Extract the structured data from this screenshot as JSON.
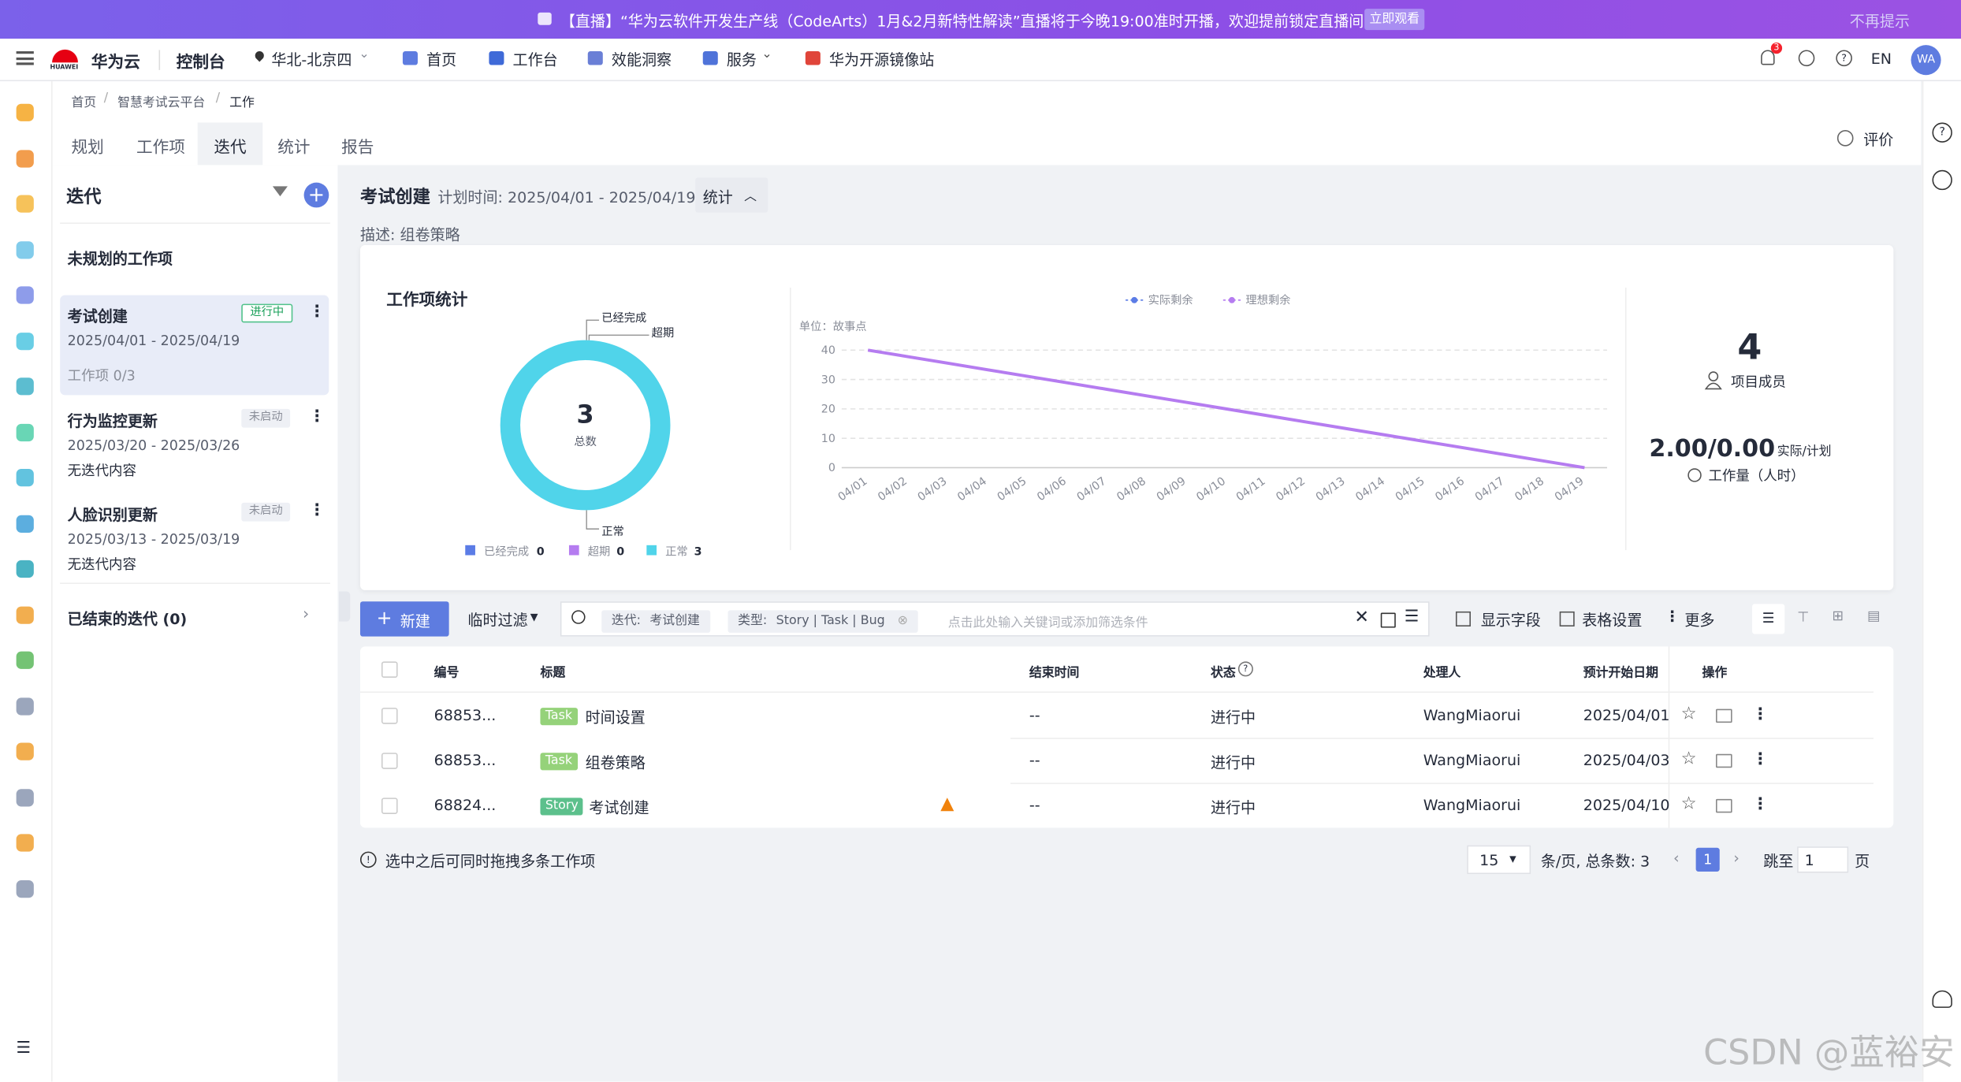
{
  "banner": {
    "text": "【直播】“华为云软件开发生产线（CodeArts）1月&2月新特性解读”直播将于今晚19:00准时开播，欢迎提前锁定直播间!",
    "button": "立即观看",
    "dismiss": "不再提示"
  },
  "nav": {
    "brand": "华为云",
    "logo_text": "HUAWEI",
    "console": "控制台",
    "region": "华北-北京四",
    "items": [
      "首页",
      "工作台",
      "效能洞察",
      "服务",
      "华为开源镜像站"
    ],
    "badge": "3",
    "lang": "EN",
    "avatar": "WA"
  },
  "breadcrumb": [
    "首页",
    "智慧考试云平台",
    "工作"
  ],
  "tabs": [
    "规划",
    "工作项",
    "迭代",
    "统计",
    "报告"
  ],
  "feedback": "评价",
  "sidebar": {
    "title": "迭代",
    "unplanned": "未规划的工作项",
    "iterations": [
      {
        "name": "考试创建",
        "status": "进行中",
        "dates": "2025/04/01 - 2025/04/19",
        "info": "工作项 0/3"
      },
      {
        "name": "行为监控更新",
        "status": "未启动",
        "dates": "2025/03/20 - 2025/03/26",
        "info": "无迭代内容"
      },
      {
        "name": "人脸识别更新",
        "status": "未启动",
        "dates": "2025/03/13 - 2025/03/19",
        "info": "无迭代内容"
      }
    ],
    "closed": "已结束的迭代 (0)"
  },
  "header": {
    "title": "考试创建",
    "plan": "计划时间: 2025/04/01 - 2025/04/19",
    "stats_button": "统计",
    "desc": "描述: 组卷策略"
  },
  "stats": {
    "title": "工作项统计",
    "members": "4",
    "members_label": "项目成员",
    "workload": "2.00/0.00",
    "workload_ratio": "实际/计划",
    "workload_label": "工作量（人时）"
  },
  "chart_data": [
    {
      "type": "pie",
      "total": 3,
      "total_label": "总数",
      "categories": [
        "已经完成",
        "超期",
        "正常"
      ],
      "values": [
        0,
        0,
        3
      ],
      "colors": [
        "#5b7ce6",
        "#b57cf0",
        "#50d4ea"
      ]
    },
    {
      "type": "line",
      "unit": "单位：故事点",
      "categories": [
        "04/01",
        "04/02",
        "04/03",
        "04/04",
        "04/05",
        "04/06",
        "04/07",
        "04/08",
        "04/09",
        "04/10",
        "04/11",
        "04/12",
        "04/13",
        "04/14",
        "04/15",
        "04/16",
        "04/17",
        "04/18",
        "04/19"
      ],
      "series": [
        {
          "name": "实际剩余",
          "color": "#5b7ce6",
          "values": [
            null,
            null,
            null,
            null,
            null,
            null,
            null,
            null,
            null,
            null,
            null,
            null,
            null,
            null,
            null,
            null,
            null,
            null,
            null
          ]
        },
        {
          "name": "理想剩余",
          "color": "#b57cf0",
          "values": [
            40,
            37.78,
            35.56,
            33.33,
            31.11,
            28.89,
            26.67,
            24.44,
            22.22,
            20,
            17.78,
            15.56,
            13.33,
            11.11,
            8.89,
            6.67,
            4.44,
            2.22,
            0
          ]
        }
      ],
      "ylim": [
        0,
        40
      ],
      "yticks": [
        0,
        10,
        20,
        30,
        40
      ],
      "grid": true
    }
  ],
  "toolbar": {
    "new": "新建",
    "filter": "临时过滤",
    "chip_iter_key": "迭代:",
    "chip_iter_val": "考试创建",
    "chip_type_key": "类型:",
    "chip_type_val": "Story | Task | Bug",
    "placeholder": "点击此处输入关键词或添加筛选条件",
    "fields": "显示字段",
    "settings": "表格设置",
    "more": "更多"
  },
  "table": {
    "headers": [
      "编号",
      "标题",
      "结束时间",
      "状态",
      "处理人",
      "预计开始日期",
      "操作"
    ],
    "rows": [
      {
        "id": "68853...",
        "type": "Task",
        "title": "时间设置",
        "end": "--",
        "status": "进行中",
        "assignee": "WangMiaorui",
        "start": "2025/04/01"
      },
      {
        "id": "68853...",
        "type": "Task",
        "title": "组卷策略",
        "end": "--",
        "status": "进行中",
        "assignee": "WangMiaorui",
        "start": "2025/04/03"
      },
      {
        "id": "68824...",
        "type": "Story",
        "title": "考试创建",
        "end": "--",
        "status": "进行中",
        "assignee": "WangMiaorui",
        "start": "2025/04/10"
      }
    ]
  },
  "footer": {
    "hint": "选中之后可同时拖拽多条工作项",
    "page_size": "15",
    "summary": "条/页, 总条数: 3",
    "page": "1",
    "jump": "跳至",
    "jump_value": "1",
    "page_unit": "页"
  },
  "watermark": "CSDN @蓝裕安"
}
